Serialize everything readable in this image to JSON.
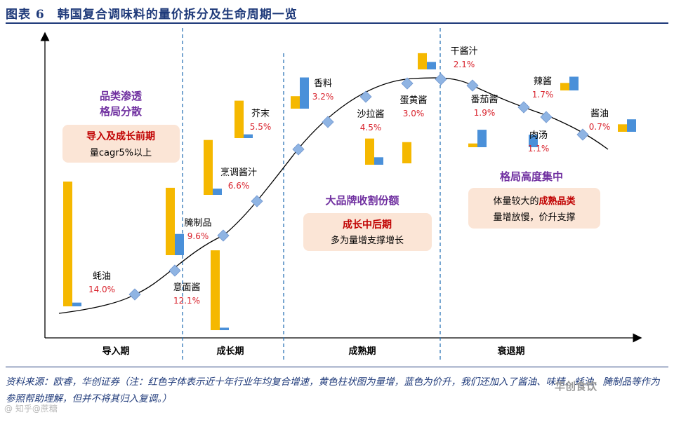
{
  "title": "图表 6　韩国复合调味料的量价拆分及生命周期一览",
  "source_line1": "资料来源：欧睿，华创证券（注：红色字体表示近十年行业年均复合增速，黄色柱状图为量增，蓝色为价升，我们还加入了酱油、味精、蚝油、腌制品等作为参照帮助理解，但并不将其归入复调。）",
  "watermark_left": "@ 知乎@蔗糖",
  "watermark_right": "华创食饮",
  "colors": {
    "volume": "#f5b800",
    "price": "#4a90d9",
    "curve_point": "#8fb4e3",
    "growth_text": "#d9232d",
    "phase_title": "#7030a0",
    "box_fill": "#fbe5d6",
    "box_title": "#c00000",
    "divider": "#2e75b6"
  },
  "chart_data": {
    "type": "lifecycle_bar_composite",
    "title": "韩国复合调味料的量价拆分及生命周期一览",
    "xlabel": "",
    "ylabel": "",
    "legend": {
      "volume": "量增（黄色柱状图）",
      "price": "价升（蓝色柱状图）",
      "growth": "近十年行业年均复合增速（红色字体）"
    },
    "phases": [
      "导入期",
      "成长期",
      "成熟期",
      "衰退期"
    ],
    "items": [
      {
        "name": "蚝油",
        "growth_pct": 14.0,
        "growth_label": "14.0%",
        "phase": "导入期",
        "volume_rel": 10.0,
        "price_rel": 0.3
      },
      {
        "name": "意面酱",
        "growth_pct": 12.1,
        "growth_label": "12.1%",
        "phase": "成长期",
        "volume_rel": 6.4,
        "price_rel": 0.2
      },
      {
        "name": "腌制品",
        "growth_pct": 9.6,
        "growth_label": "9.6%",
        "phase": "成长期",
        "volume_rel": 5.4,
        "price_rel": 1.7
      },
      {
        "name": "烹调酱汁",
        "growth_pct": 6.6,
        "growth_label": "6.6%",
        "phase": "成长期",
        "volume_rel": 4.4,
        "price_rel": 0.5
      },
      {
        "name": "芥末",
        "growth_pct": 5.5,
        "growth_label": "5.5%",
        "phase": "成长期",
        "volume_rel": 3.0,
        "price_rel": 0.3
      },
      {
        "name": "香料",
        "growth_pct": 3.2,
        "growth_label": "3.2%",
        "phase": "成熟期",
        "volume_rel": 1.0,
        "price_rel": 2.5
      },
      {
        "name": "沙拉酱",
        "growth_pct": 4.5,
        "growth_label": "4.5%",
        "phase": "成熟期",
        "volume_rel": 2.1,
        "price_rel": 0.6
      },
      {
        "name": "蛋黄酱",
        "growth_pct": 3.0,
        "growth_label": "3.0%",
        "phase": "成熟期",
        "volume_rel": 1.7,
        "price_rel": 0.0
      },
      {
        "name": "干酱汁",
        "growth_pct": 2.1,
        "growth_label": "2.1%",
        "phase": "成熟期",
        "volume_rel": 1.3,
        "price_rel": 0.6
      },
      {
        "name": "番茄酱",
        "growth_pct": 1.9,
        "growth_label": "1.9%",
        "phase": "衰退期",
        "volume_rel": 0.3,
        "price_rel": 1.4
      },
      {
        "name": "肉汤",
        "growth_pct": 1.1,
        "growth_label": "1.1%",
        "phase": "衰退期",
        "volume_rel": 0.0,
        "price_rel": 1.0
      },
      {
        "name": "辣酱",
        "growth_pct": 1.7,
        "growth_label": "1.7%",
        "phase": "衰退期",
        "volume_rel": 0.6,
        "price_rel": 1.1
      },
      {
        "name": "酱油",
        "growth_pct": 0.7,
        "growth_label": "0.7%",
        "phase": "衰退期",
        "volume_rel": 0.6,
        "price_rel": 1.0
      }
    ],
    "annotations": [
      {
        "title": [
          "品类渗透",
          "格局分散"
        ],
        "box_title": "导入及成长前期",
        "box_text": "量cagr5%以上"
      },
      {
        "title": [
          "大品牌收割份额"
        ],
        "box_title": "成长中后期",
        "box_text": "多为量增支撑增长"
      },
      {
        "title": [
          "格局高度集中"
        ],
        "box_text_parts": [
          "体量较大的",
          "成熟品类",
          "量增放慢，价升支撑"
        ]
      }
    ]
  }
}
